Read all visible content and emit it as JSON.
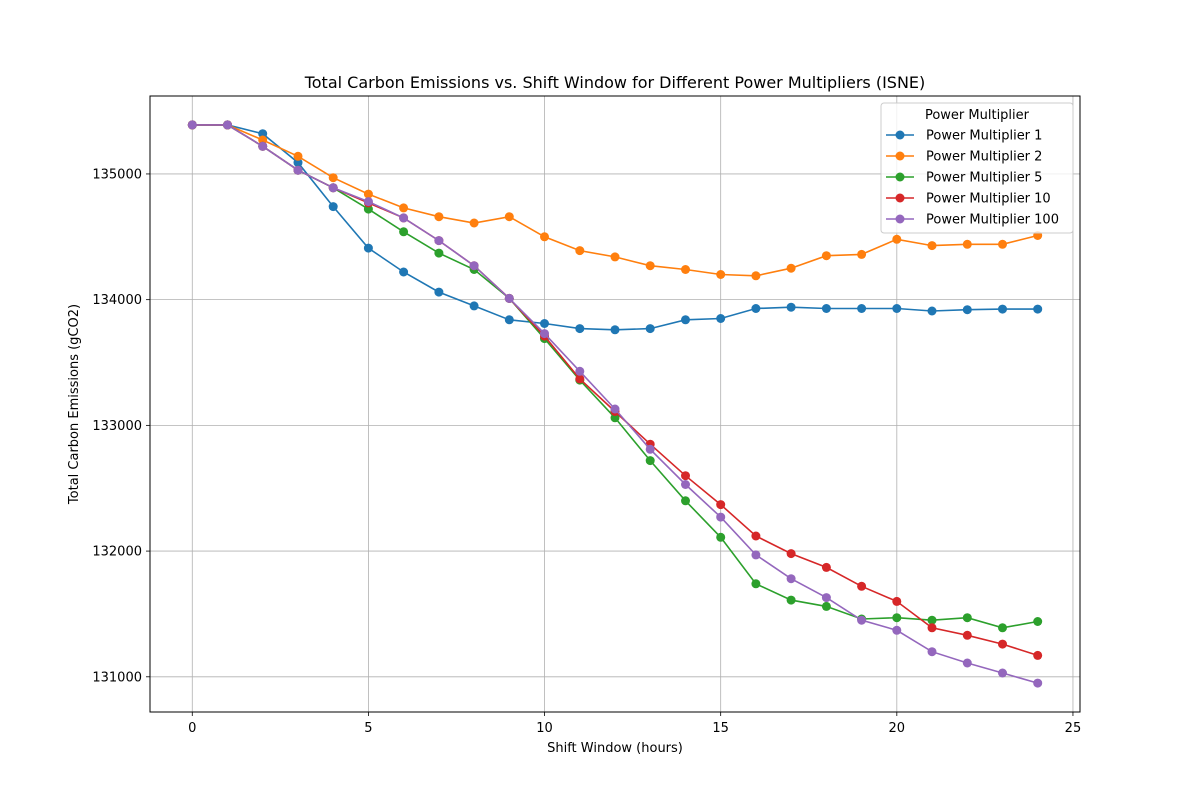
{
  "chart_data": {
    "type": "line",
    "title": "Total Carbon Emissions vs. Shift Window for Different Power Multipliers (ISNE)",
    "xlabel": "Shift Window (hours)",
    "ylabel": "Total Carbon Emissions (gCO2)",
    "xlim": [
      -1.2,
      25.2
    ],
    "ylim": [
      130720,
      135620
    ],
    "x_ticks": [
      0,
      5,
      10,
      15,
      20,
      25
    ],
    "y_ticks": [
      131000,
      132000,
      133000,
      134000,
      135000
    ],
    "grid": true,
    "legend": {
      "title": "Power Multiplier",
      "placement": "top-right"
    },
    "x": [
      0,
      1,
      2,
      3,
      4,
      5,
      6,
      7,
      8,
      9,
      10,
      11,
      12,
      13,
      14,
      15,
      16,
      17,
      18,
      19,
      20,
      21,
      22,
      23,
      24
    ],
    "series": [
      {
        "name": "Power Multiplier 1",
        "color": "#1f77b4",
        "values": [
          135390,
          135390,
          135320,
          135090,
          134740,
          134410,
          134220,
          134060,
          133950,
          133840,
          133810,
          133770,
          133760,
          133770,
          133840,
          133850,
          133930,
          133940,
          133930,
          133930,
          133930,
          133910,
          133920,
          133925,
          133925
        ]
      },
      {
        "name": "Power Multiplier 2",
        "color": "#ff7f0e",
        "values": [
          135390,
          135390,
          135270,
          135140,
          134970,
          134840,
          134730,
          134660,
          134610,
          134660,
          134500,
          134390,
          134340,
          134270,
          134240,
          134200,
          134190,
          134250,
          134350,
          134360,
          134480,
          134430,
          134440,
          134440,
          134510
        ]
      },
      {
        "name": "Power Multiplier 5",
        "color": "#2ca02c",
        "values": [
          135390,
          135390,
          135220,
          135030,
          134890,
          134720,
          134540,
          134370,
          134240,
          134010,
          133690,
          133360,
          133060,
          132720,
          132400,
          132110,
          131740,
          131610,
          131560,
          131460,
          131470,
          131450,
          131470,
          131390,
          131440
        ]
      },
      {
        "name": "Power Multiplier 10",
        "color": "#d62728",
        "values": [
          135390,
          135390,
          135220,
          135030,
          134890,
          134770,
          134650,
          134470,
          134270,
          134010,
          133710,
          133370,
          133110,
          132850,
          132600,
          132370,
          132120,
          131980,
          131870,
          131720,
          131600,
          131390,
          131330,
          131260,
          131170
        ]
      },
      {
        "name": "Power Multiplier 100",
        "color": "#9467bd",
        "values": [
          135390,
          135390,
          135220,
          135030,
          134890,
          134780,
          134650,
          134470,
          134270,
          134010,
          133730,
          133430,
          133130,
          132810,
          132530,
          132270,
          131970,
          131780,
          131630,
          131450,
          131370,
          131200,
          131110,
          131030,
          130950
        ]
      }
    ]
  }
}
